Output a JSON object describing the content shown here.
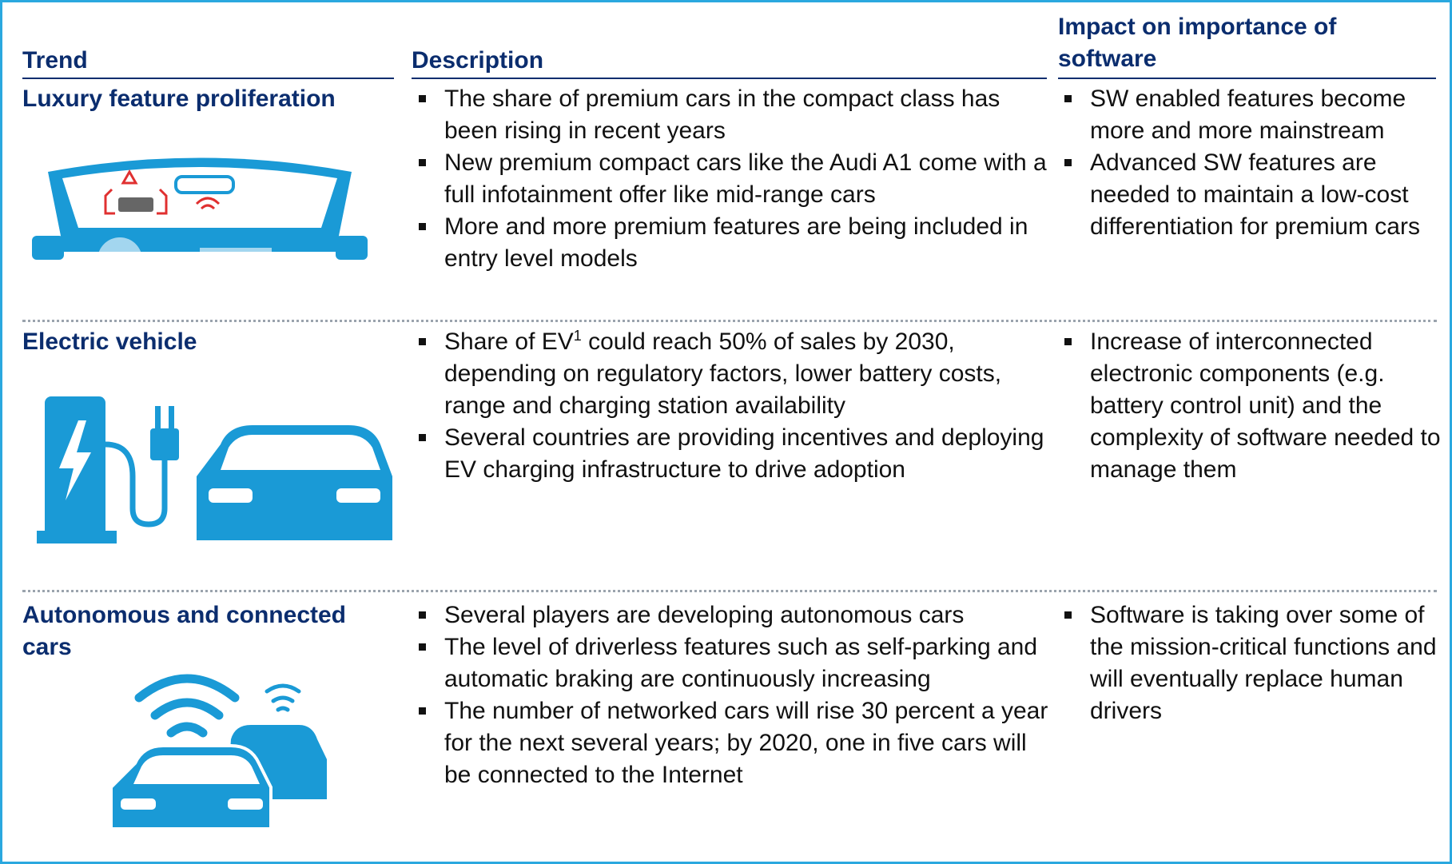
{
  "header": {
    "trend": "Trend",
    "description": "Description",
    "impact": "Impact on importance of software"
  },
  "rows": [
    {
      "trend": "Luxury feature proliferation",
      "description": [
        "The share of premium cars in the compact class has been rising in recent years",
        "New premium compact cars like the Audi A1 come with a full infotainment offer like mid-range cars",
        "More and more premium features are being included in entry level models"
      ],
      "impact": [
        "SW enabled features become more and more mainstream",
        "Advanced SW features are needed to maintain a low-cost differentiation for premium cars"
      ]
    },
    {
      "trend": "Electric vehicle",
      "description": [
        {
          "before": "Share of EV",
          "sup": "1",
          "after": " could reach 50% of sales by 2030, depending on regulatory factors, lower battery costs, range and charging station availability"
        },
        "Several countries are providing incentives and deploying EV charging infrastructure to drive adoption"
      ],
      "impact": [
        "Increase of interconnected electronic components (e.g. battery control unit) and the complexity of software needed to manage them"
      ]
    },
    {
      "trend": "Autonomous and connected cars",
      "description": [
        "Several players are developing autonomous cars",
        "The level of driverless features such as self-parking and automatic braking are continuously increasing",
        "The number of networked cars will rise 30 percent a year for the next several years; by 2020, one in five cars will be connected to the Internet"
      ],
      "impact": [
        "Software is taking over some of the mission-critical functions and will eventually replace human drivers"
      ]
    }
  ]
}
